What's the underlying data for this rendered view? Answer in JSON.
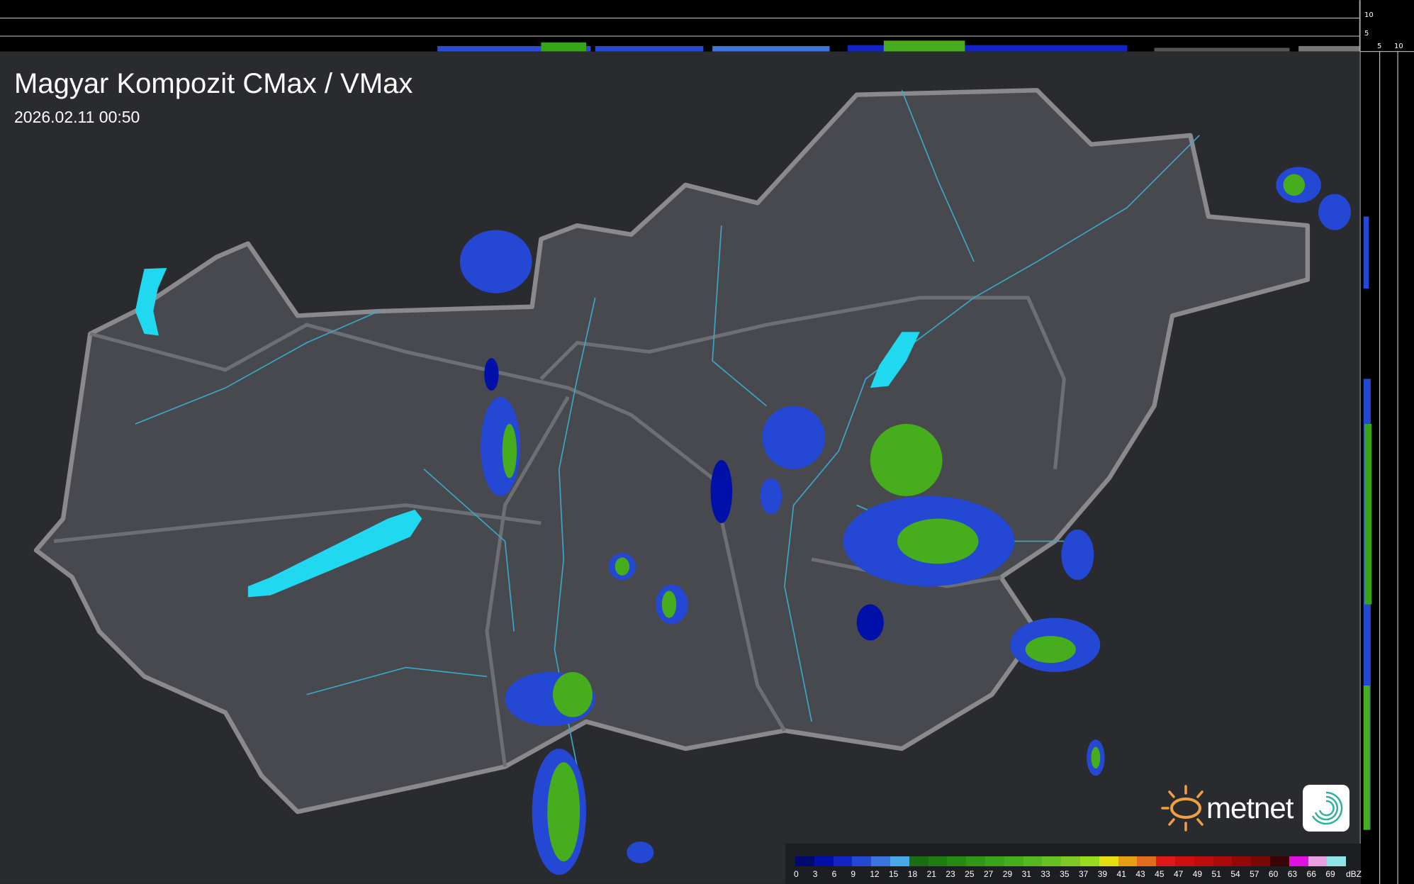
{
  "header": {
    "title": "Magyar Kompozit CMax / VMax",
    "timestamp": "2026.02.11 00:50"
  },
  "profile_axes": {
    "top_ticks": [
      "10",
      "5"
    ],
    "right_ticks": [
      "5",
      "10"
    ]
  },
  "legend": {
    "unit": "dBZ",
    "stops": [
      {
        "label": "0",
        "color": "#000a6e"
      },
      {
        "label": "3",
        "color": "#0010a8"
      },
      {
        "label": "6",
        "color": "#1424c4"
      },
      {
        "label": "9",
        "color": "#2448d4"
      },
      {
        "label": "12",
        "color": "#3a74dc"
      },
      {
        "label": "15",
        "color": "#4aa8e4"
      },
      {
        "label": "18",
        "color": "#1a6e10"
      },
      {
        "label": "21",
        "color": "#1f7c10"
      },
      {
        "label": "23",
        "color": "#268a12"
      },
      {
        "label": "25",
        "color": "#309816"
      },
      {
        "label": "27",
        "color": "#3aa418"
      },
      {
        "label": "29",
        "color": "#46ae1c"
      },
      {
        "label": "31",
        "color": "#56b620"
      },
      {
        "label": "33",
        "color": "#68c024"
      },
      {
        "label": "35",
        "color": "#7ec828"
      },
      {
        "label": "37",
        "color": "#98da1e"
      },
      {
        "label": "39",
        "color": "#e4e010"
      },
      {
        "label": "41",
        "color": "#e4a012"
      },
      {
        "label": "43",
        "color": "#e06e1c"
      },
      {
        "label": "45",
        "color": "#e01818"
      },
      {
        "label": "47",
        "color": "#cc1010"
      },
      {
        "label": "49",
        "color": "#bc0c0c"
      },
      {
        "label": "51",
        "color": "#aa0a0a"
      },
      {
        "label": "54",
        "color": "#940808"
      },
      {
        "label": "57",
        "color": "#7a0606"
      },
      {
        "label": "60",
        "color": "#3a0404"
      },
      {
        "label": "63",
        "color": "#e010e0"
      },
      {
        "label": "66",
        "color": "#e8a0e0"
      },
      {
        "label": "69",
        "color": "#90e4e8"
      }
    ]
  },
  "branding": {
    "logo_text": "metnet",
    "logo_color": "#f0a040",
    "app_icon_color": "#30b0a0"
  },
  "colors": {
    "background": "#2a2b2e",
    "country_fill": "#48494e",
    "border": "#8a8a8e",
    "water": "#20d8f0",
    "rivers": "#3aa8c8"
  }
}
